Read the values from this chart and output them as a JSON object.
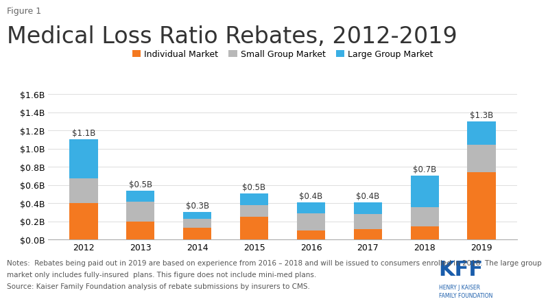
{
  "years": [
    "2012",
    "2013",
    "2014",
    "2015",
    "2016",
    "2017",
    "2018",
    "2019"
  ],
  "individual": [
    0.4,
    0.2,
    0.13,
    0.25,
    0.1,
    0.11,
    0.14,
    0.74
  ],
  "small_group": [
    0.27,
    0.215,
    0.1,
    0.13,
    0.185,
    0.17,
    0.215,
    0.3
  ],
  "large_group": [
    0.43,
    0.12,
    0.07,
    0.125,
    0.12,
    0.125,
    0.345,
    0.26
  ],
  "totals": [
    "$1.1B",
    "$0.5B",
    "$0.3B",
    "$0.5B",
    "$0.4B",
    "$0.4B",
    "$0.7B",
    "$1.3B"
  ],
  "color_individual": "#F47920",
  "color_small": "#B8B8B8",
  "color_large": "#3AAFE4",
  "title": "Medical Loss Ratio Rebates, 2012-2019",
  "figure_label": "Figure 1",
  "ylim": [
    0,
    1.7
  ],
  "yticks": [
    0.0,
    0.2,
    0.4,
    0.6,
    0.8,
    1.0,
    1.2,
    1.4,
    1.6
  ],
  "ytick_labels": [
    "$0.0B",
    "$0.2B",
    "$0.4B",
    "$0.6B",
    "$0.8B",
    "$1.0B",
    "$1.2B",
    "$1.4B",
    "$1.6B"
  ],
  "legend_individual": "Individual Market",
  "legend_small": "Small Group Market",
  "legend_large": "Large Group Market",
  "note_line1": "Notes:  Rebates being paid out in 2019 are based on experience from 2016 – 2018 and will be issued to consumers enrolled in 2018. The large group",
  "note_line2": "market only includes fully-insured  plans. This figure does not include mini-med plans.",
  "note_line3": "Source: Kaiser Family Foundation analysis of rebate submissions by insurers to CMS.",
  "bg_color": "#FFFFFF",
  "total_label_fontsize": 8.5,
  "title_fontsize": 24,
  "figure_label_fontsize": 9,
  "axis_fontsize": 9,
  "legend_fontsize": 9,
  "note_fontsize": 7.5,
  "bar_width": 0.5
}
